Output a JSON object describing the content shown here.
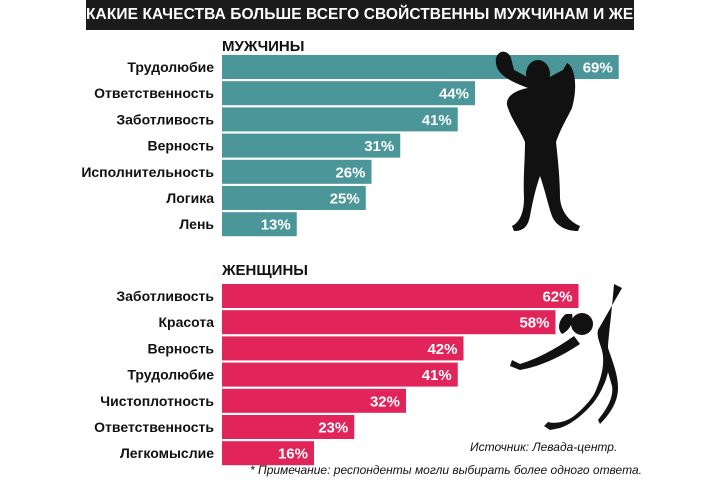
{
  "title": "КАКИЕ КАЧЕСТВА БОЛЬШЕ ВСЕГО СВОЙСТВЕННЫ МУЖЧИНАМ И ЖЕНЩИНАМ*",
  "source": "Источник: Левада-центр.",
  "note": "* Примечание: респонденты могли выбирать более одного ответа.",
  "colors": {
    "men": "#4a9699",
    "women": "#e1245a",
    "title_bg": "#1b1b1b",
    "silhouette": "#111111"
  },
  "icons": {
    "men": "bodybuilder-silhouette-icon",
    "women": "jumping-woman-silhouette-icon"
  },
  "chart_data": [
    {
      "type": "bar",
      "orientation": "horizontal",
      "title": "МУЖЧИНЫ",
      "categories": [
        "Трудолюбие",
        "Ответственность",
        "Заботливость",
        "Верность",
        "Исполнительность",
        "Логика",
        "Лень"
      ],
      "values": [
        69,
        44,
        41,
        31,
        26,
        25,
        13
      ],
      "value_labels": [
        "69%",
        "44%",
        "41%",
        "31%",
        "26%",
        "25%",
        "13%"
      ],
      "unit": "%"
    },
    {
      "type": "bar",
      "orientation": "horizontal",
      "title": "ЖЕНЩИНЫ",
      "categories": [
        "Заботливость",
        "Красота",
        "Верность",
        "Трудолюбие",
        "Чистоплотность",
        "Ответственность",
        "Легкомыслие"
      ],
      "values": [
        62,
        58,
        42,
        41,
        32,
        23,
        16
      ],
      "value_labels": [
        "62%",
        "58%",
        "42%",
        "41%",
        "32%",
        "23%",
        "16%"
      ],
      "unit": "%"
    }
  ]
}
